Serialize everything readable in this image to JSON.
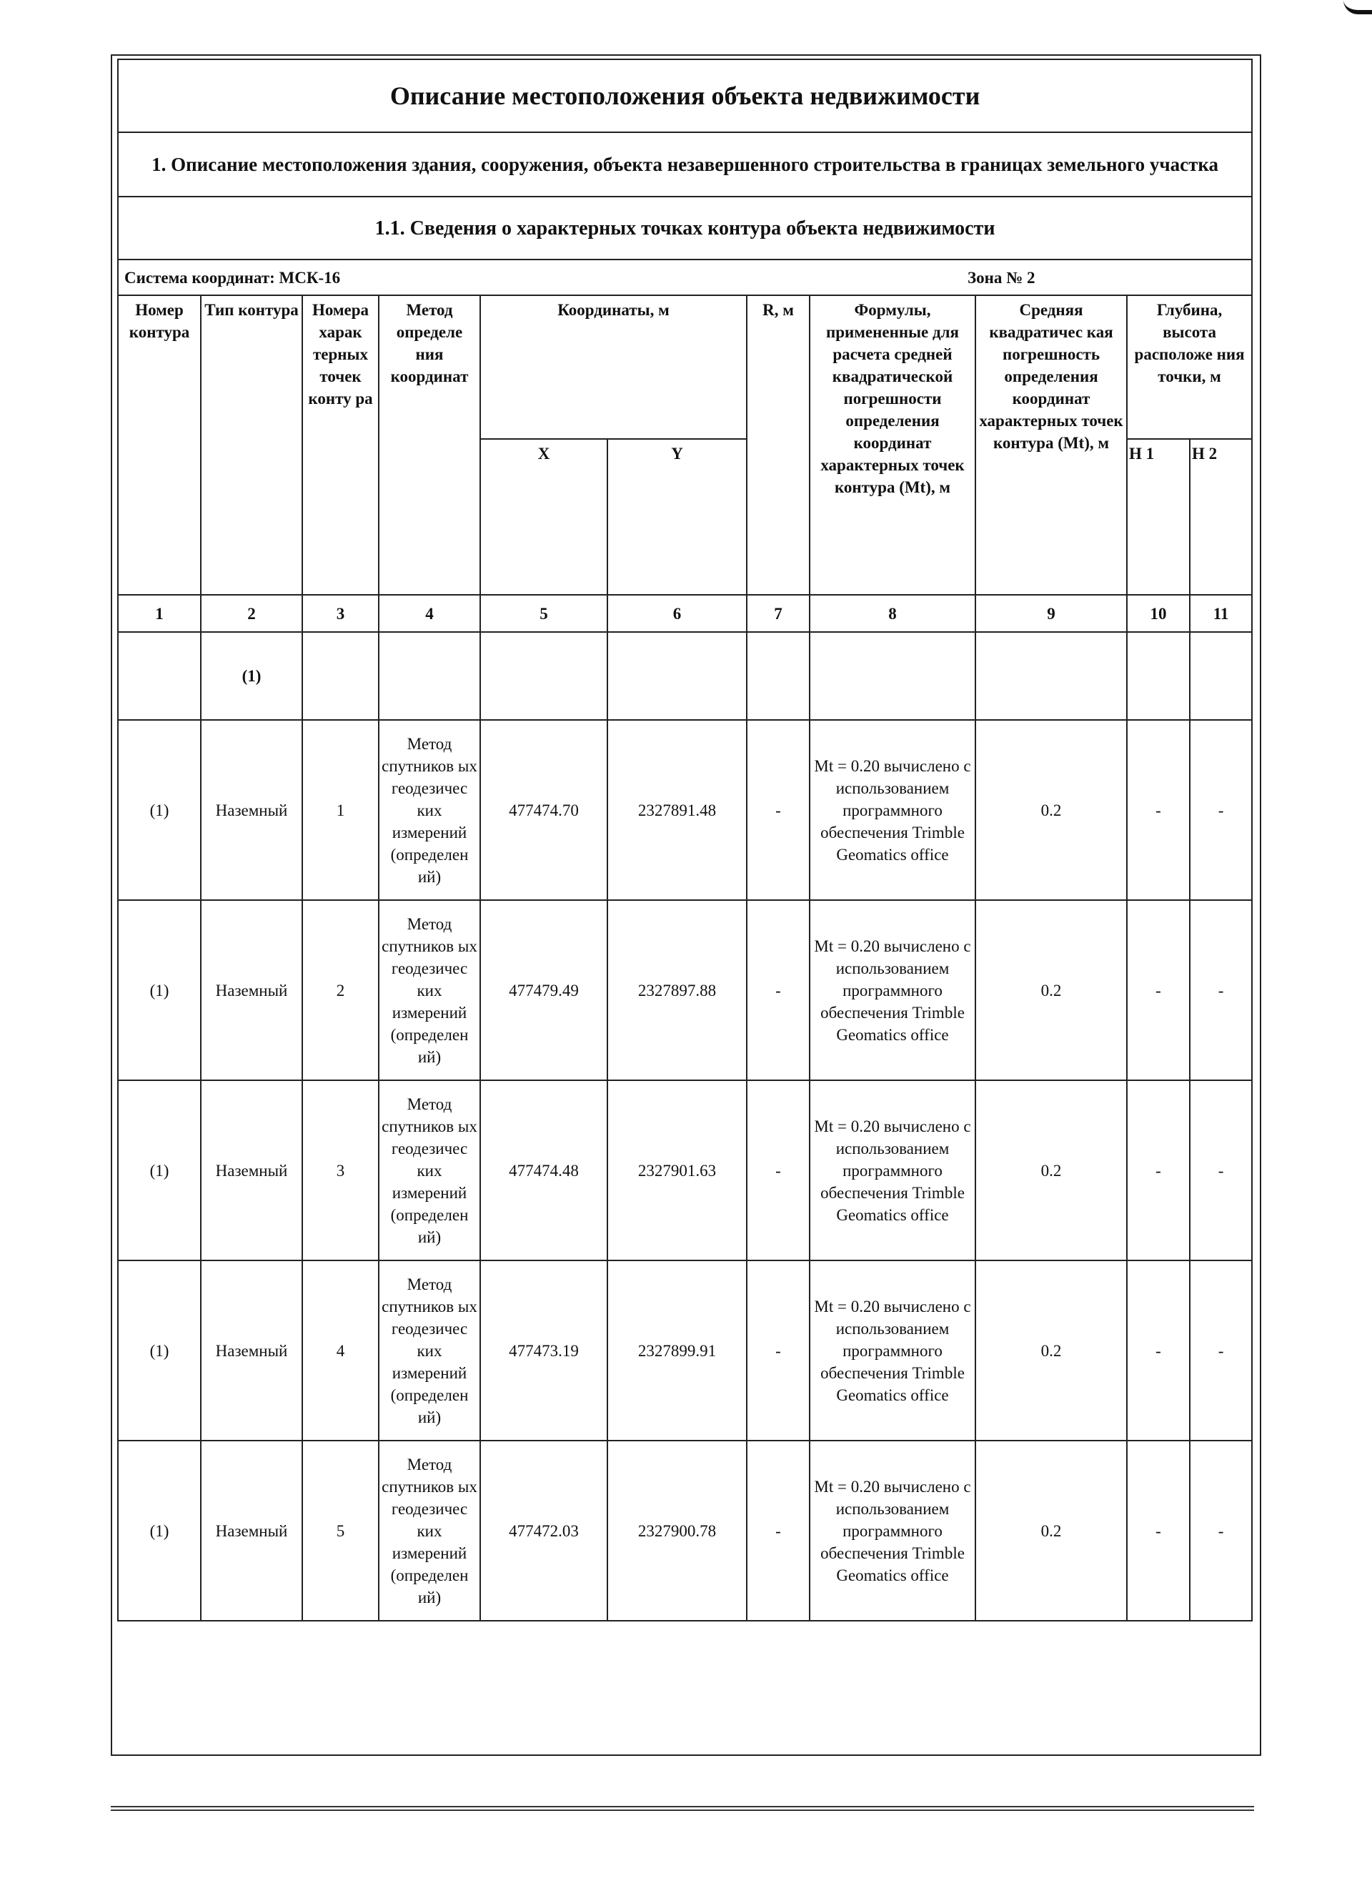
{
  "title": "Описание местоположения объекта недвижимости",
  "section1": "1. Описание местоположения здания, сооружения, объекта незавершенного строительства в границах земельного участка",
  "section11": "1.1. Сведения о характерных точках контура объекта недвижимости",
  "coord_system": "Система координат: МСК-16",
  "zone": "Зона № 2",
  "headers": {
    "c1": "Номер контура",
    "c2": "Тип контура",
    "c3": "Номера харак терных точек конту ра",
    "c4": "Метод определе ния координат",
    "c56": "Координаты, м",
    "c5": "X",
    "c6": "Y",
    "c7": "R, м",
    "c8": "Формулы, примененные для расчета средней квадратической погрешности определения координат характерных точек контура (Mt), м",
    "c9": "Средняя квадратичес кая погрешность определения координат характерных точек контура (Mt), м",
    "c1011": "Глубина, высота расположе ния точки, м",
    "c10": "H 1",
    "c11": "H 2"
  },
  "col_numbers": [
    "1",
    "2",
    "3",
    "4",
    "5",
    "6",
    "7",
    "8",
    "9",
    "10",
    "11"
  ],
  "contour_label": "(1)",
  "rows": [
    {
      "contour": "(1)",
      "type": "Наземный",
      "point": "1",
      "method": "Метод спутников ых геодезичес ких измерений (определен ий)",
      "x": "477474.70",
      "y": "2327891.48",
      "r": "-",
      "formula": "Mt = 0.20 вычислено с использованием программного обеспечения Trimble Geomatics office",
      "mt": "0.2",
      "h1": "-",
      "h2": "-"
    },
    {
      "contour": "(1)",
      "type": "Наземный",
      "point": "2",
      "method": "Метод спутников ых геодезичес ких измерений (определен ий)",
      "x": "477479.49",
      "y": "2327897.88",
      "r": "-",
      "formula": "Mt = 0.20 вычислено с использованием программного обеспечения Trimble Geomatics office",
      "mt": "0.2",
      "h1": "-",
      "h2": "-"
    },
    {
      "contour": "(1)",
      "type": "Наземный",
      "point": "3",
      "method": "Метод спутников ых геодезичес ких измерений (определен ий)",
      "x": "477474.48",
      "y": "2327901.63",
      "r": "-",
      "formula": "Mt = 0.20 вычислено с использованием программного обеспечения Trimble Geomatics office",
      "mt": "0.2",
      "h1": "-",
      "h2": "-"
    },
    {
      "contour": "(1)",
      "type": "Наземный",
      "point": "4",
      "method": "Метод спутников ых геодезичес ких измерений (определен ий)",
      "x": "477473.19",
      "y": "2327899.91",
      "r": "-",
      "formula": "Mt = 0.20 вычислено с использованием программного обеспечения Trimble Geomatics office",
      "mt": "0.2",
      "h1": "-",
      "h2": "-"
    },
    {
      "contour": "(1)",
      "type": "Наземный",
      "point": "5",
      "method": "Метод спутников ых геодезичес ких измерений (определен ий)",
      "x": "477472.03",
      "y": "2327900.78",
      "r": "-",
      "formula": "Mt = 0.20 вычислено с использованием программного обеспечения Trimble Geomatics office",
      "mt": "0.2",
      "h1": "-",
      "h2": "-"
    }
  ]
}
